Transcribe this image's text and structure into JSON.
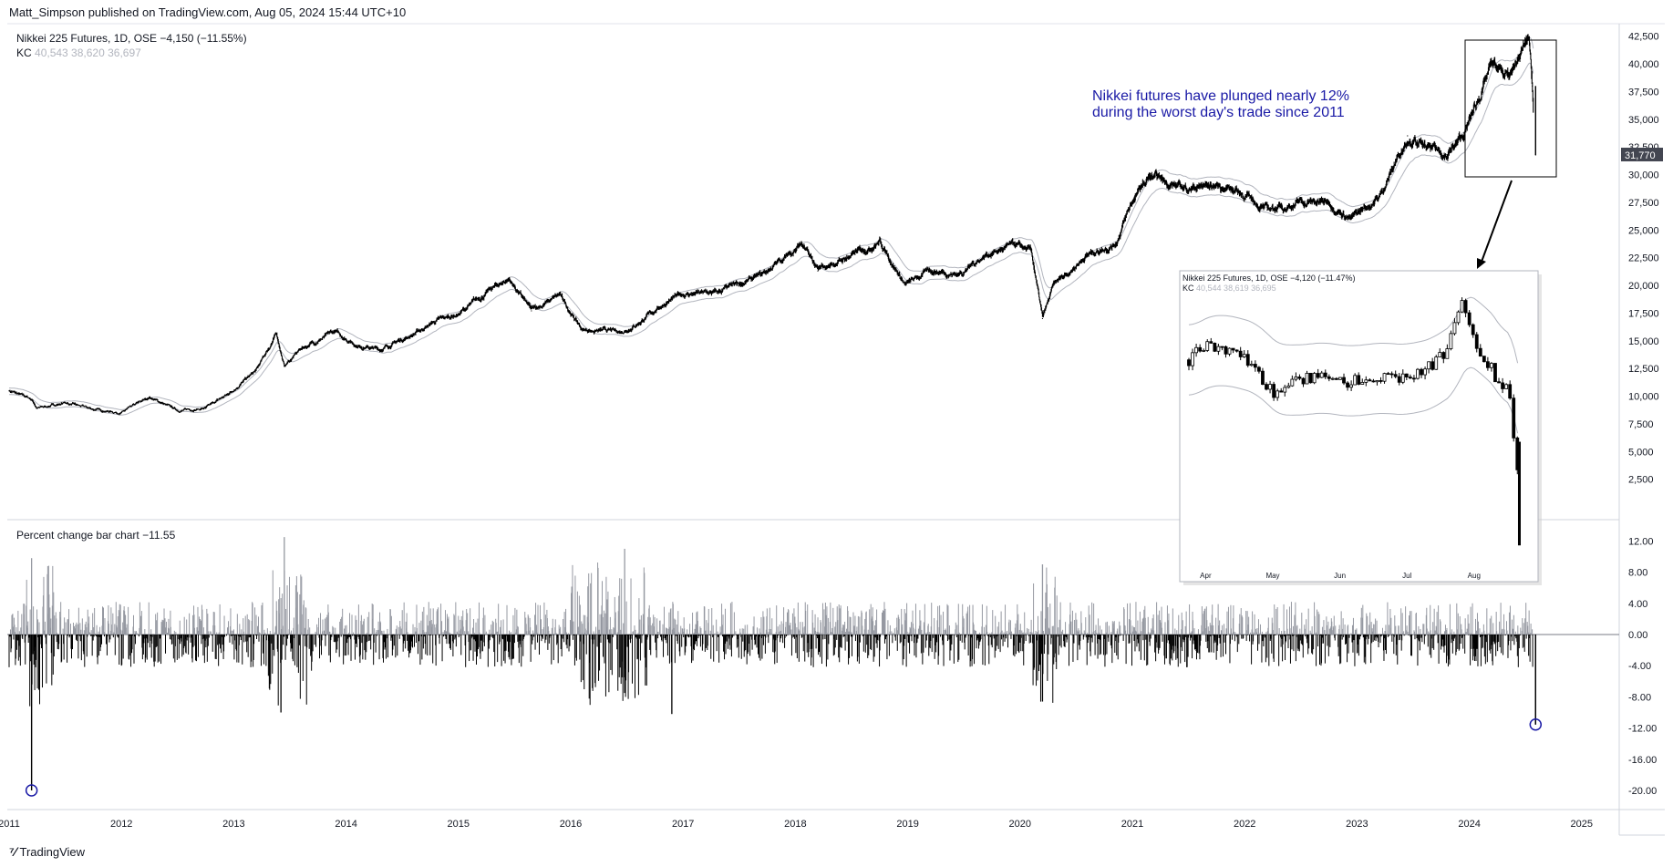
{
  "publish_line": "Matt_Simpson published on TradingView.com, Aug 05, 2024 15:44 UTC+10",
  "brand": "TradingView",
  "main_legend": {
    "title": "Nikkei 225 Futures, 1D, OSE",
    "change": "−4,150 (−11.55%)",
    "kc_label": "KC",
    "kc_values": "40,543  38,620  36,697"
  },
  "annotation": {
    "line1": "Nikkei futures have plunged nearly 12%",
    "line2": "during the worst day's trade since 2011"
  },
  "indicator_legend": {
    "title": "Percent change bar chart",
    "value": "−11.55"
  },
  "inset_legend": {
    "title": "Nikkei 225 Futures, 1D, OSE",
    "change": "−4,120 (−11.47%)",
    "kc_label": "KC",
    "kc_values": "40,544  38,619  36,695"
  },
  "colors": {
    "bull": "#000000",
    "bear": "#9598a1",
    "keltner": "#b2b5be",
    "annotation": "#1a1aa6",
    "last_price_badge": "#434651",
    "circle": "#1a1aa6",
    "grid_line": "#e0e3eb"
  },
  "chart_data": [
    {
      "type": "line",
      "title": "Nikkei 225 Futures, 1D, OSE",
      "x_axis_labels": [
        "2011",
        "2012",
        "2013",
        "2014",
        "2015",
        "2016",
        "2017",
        "2018",
        "2019",
        "2020",
        "2021",
        "2022",
        "2023",
        "2024",
        "2025"
      ],
      "y_ticks": [
        "42,500",
        "40,000",
        "37,500",
        "35,000",
        "32,500",
        "30,000",
        "27,500",
        "25,000",
        "22,500",
        "20,000",
        "17,500",
        "15,000",
        "12,500",
        "10,000",
        "7,500",
        "5,000",
        "2,500"
      ],
      "ylim": [
        0,
        43500
      ],
      "last_price_label": "31,770",
      "series": [
        {
          "name": "Nikkei 225 Futures",
          "x": [
            2011.0,
            2011.2,
            2011.25,
            2011.5,
            2011.75,
            2012.0,
            2012.25,
            2012.5,
            2012.75,
            2012.95,
            2013.2,
            2013.38,
            2013.45,
            2013.6,
            2013.9,
            2014.1,
            2014.3,
            2014.6,
            2014.8,
            2015.0,
            2015.3,
            2015.45,
            2015.65,
            2015.9,
            2016.1,
            2016.45,
            2016.6,
            2016.85,
            2017.0,
            2017.3,
            2017.7,
            2017.95,
            2018.05,
            2018.2,
            2018.5,
            2018.75,
            2018.98,
            2019.2,
            2019.45,
            2019.7,
            2019.95,
            2020.1,
            2020.2,
            2020.3,
            2020.6,
            2020.85,
            2021.0,
            2021.15,
            2021.45,
            2021.7,
            2021.9,
            2022.2,
            2022.5,
            2022.75,
            2022.95,
            2023.2,
            2023.45,
            2023.6,
            2023.8,
            2023.95,
            2024.2,
            2024.35,
            2024.53,
            2024.56,
            2024.59
          ],
          "values": [
            10500,
            9700,
            8900,
            9400,
            8800,
            8500,
            9900,
            8700,
            8900,
            10200,
            12300,
            15600,
            12700,
            14300,
            15800,
            14600,
            14200,
            15600,
            16800,
            17400,
            19700,
            20600,
            17700,
            19100,
            16000,
            15800,
            16600,
            18500,
            19200,
            19300,
            20900,
            22900,
            23800,
            21300,
            22700,
            24000,
            20000,
            21400,
            21000,
            22800,
            23600,
            23000,
            17000,
            20000,
            22800,
            23800,
            27600,
            29800,
            28800,
            29000,
            28800,
            26800,
            27500,
            27500,
            26000,
            28000,
            33500,
            32400,
            31800,
            33500,
            39900,
            38600,
            42400,
            38000,
            31770
          ]
        },
        {
          "name": "KC",
          "x": [
            2024.59
          ],
          "values": [
            38620
          ]
        }
      ]
    },
    {
      "type": "bar",
      "title": "Percent change bar chart",
      "x_axis_labels": [
        "2011",
        "2012",
        "2013",
        "2014",
        "2015",
        "2016",
        "2017",
        "2018",
        "2019",
        "2020",
        "2021",
        "2022",
        "2023",
        "2024",
        "2025"
      ],
      "y_ticks": [
        "12.00",
        "8.00",
        "4.00",
        "0.00",
        "-4.00",
        "-8.00",
        "-12.00",
        "-16.00",
        "-20.00"
      ],
      "ylim": [
        -22,
        13
      ],
      "highlighted": [
        {
          "x": 2011.2,
          "value": -20.0
        },
        {
          "x": 2024.59,
          "value": -11.55
        }
      ],
      "notable_bars": [
        {
          "x": 2011.2,
          "value": 9.8
        },
        {
          "x": 2013.42,
          "value": -10.0
        },
        {
          "x": 2013.45,
          "value": 12.5
        },
        {
          "x": 2016.48,
          "value": 11.0
        },
        {
          "x": 2016.48,
          "value": -7.5
        },
        {
          "x": 2016.9,
          "value": -10.2
        },
        {
          "x": 2020.2,
          "value": 9.0
        },
        {
          "x": 2020.2,
          "value": -8.6
        },
        {
          "x": 2024.59,
          "value": -11.55
        }
      ]
    },
    {
      "type": "line",
      "title": "Nikkei 225 Futures, 1D, OSE",
      "x_axis_labels": [
        "Apr",
        "May",
        "Jun",
        "Jul",
        "Aug"
      ],
      "ylim": [
        31000,
        43000
      ],
      "series": [
        {
          "name": "Nikkei 225 Futures",
          "x": [
            0.0,
            0.05,
            0.1,
            0.18,
            0.25,
            0.3,
            0.38,
            0.45,
            0.55,
            0.62,
            0.7,
            0.77,
            0.8,
            0.82,
            0.86,
            0.88,
            0.9,
            0.92,
            0.95,
            0.97,
            1.0
          ],
          "values": [
            39700,
            40400,
            40100,
            39600,
            38300,
            38800,
            39000,
            38700,
            39000,
            38800,
            39200,
            40100,
            41500,
            42200,
            40100,
            39800,
            39400,
            38600,
            38700,
            36200,
            31770
          ]
        }
      ]
    }
  ]
}
